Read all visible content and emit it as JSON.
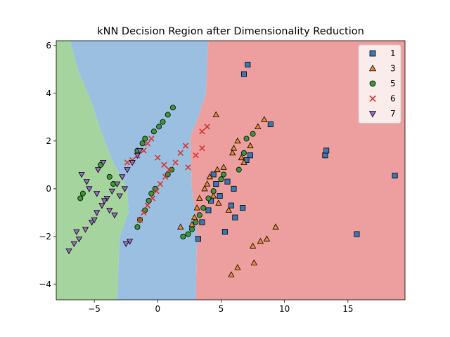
{
  "chart_data": {
    "type": "scatter",
    "title": "kNN Decision Region after Dimensionality Reduction",
    "xlabel": "",
    "ylabel": "",
    "xlim": [
      -8,
      19.5
    ],
    "ylim": [
      -4.65,
      6.2
    ],
    "xticks": [
      -5,
      0,
      5,
      10,
      15
    ],
    "xtick_labels": [
      "−5",
      "0",
      "5",
      "10",
      "15"
    ],
    "yticks": [
      -4,
      -2,
      0,
      2,
      4,
      6
    ],
    "ytick_labels": [
      "−4",
      "−2",
      "0",
      "2",
      "4",
      "6"
    ],
    "grid": false,
    "legend_position": "top-right",
    "regions": [
      {
        "class": "7",
        "color": "#a6d49e",
        "boundary": [
          [
            -8,
            6.2
          ],
          [
            -6.9,
            6.2
          ],
          [
            -6.3,
            5.0
          ],
          [
            -5.2,
            3.6
          ],
          [
            -4.4,
            2.3
          ],
          [
            -3.6,
            1.2
          ],
          [
            -2.9,
            0.5
          ],
          [
            -2.4,
            0.0
          ],
          [
            -2.3,
            -1.0
          ],
          [
            -3.0,
            -2.0
          ],
          [
            -3.2,
            -4.65
          ],
          [
            -8,
            -4.65
          ]
        ]
      },
      {
        "class": "1",
        "color": "#9abfe0",
        "boundary": [
          [
            -6.9,
            6.2
          ],
          [
            4.0,
            6.2
          ],
          [
            3.8,
            4.0
          ],
          [
            3.2,
            3.0
          ],
          [
            2.6,
            2.2
          ],
          [
            2.6,
            1.3
          ],
          [
            2.7,
            0.0
          ],
          [
            3.0,
            -1.2
          ],
          [
            3.1,
            -2.0
          ],
          [
            3.0,
            -4.65
          ],
          [
            -3.2,
            -4.65
          ],
          [
            -3.0,
            -2.0
          ],
          [
            -2.3,
            -1.0
          ],
          [
            -2.4,
            0.0
          ],
          [
            -2.9,
            0.5
          ],
          [
            -3.6,
            1.2
          ],
          [
            -4.4,
            2.3
          ],
          [
            -5.2,
            3.6
          ],
          [
            -6.3,
            5.0
          ]
        ]
      },
      {
        "class": "3",
        "color": "#ec9f9e",
        "boundary": [
          [
            4.0,
            6.2
          ],
          [
            19.5,
            6.2
          ],
          [
            19.5,
            -4.65
          ],
          [
            3.0,
            -4.65
          ],
          [
            3.1,
            -2.0
          ],
          [
            3.0,
            -1.2
          ],
          [
            2.7,
            0.0
          ],
          [
            2.6,
            1.3
          ],
          [
            2.6,
            2.2
          ],
          [
            3.2,
            3.0
          ],
          [
            3.8,
            4.0
          ]
        ]
      }
    ],
    "series": [
      {
        "name": "1",
        "marker": "square",
        "color": "#3a78b4",
        "points": [
          [
            7.1,
            5.2
          ],
          [
            6.8,
            4.8
          ],
          [
            8.9,
            2.7
          ],
          [
            7.3,
            1.4
          ],
          [
            7.0,
            1.2
          ],
          [
            13.2,
            1.4
          ],
          [
            13.3,
            1.6
          ],
          [
            18.7,
            0.55
          ],
          [
            15.7,
            -1.9
          ],
          [
            4.4,
            0.6
          ],
          [
            5.5,
            0.3
          ],
          [
            6.0,
            0.0
          ],
          [
            5.8,
            -0.7
          ],
          [
            6.7,
            -0.8
          ],
          [
            6.1,
            -1.2
          ],
          [
            5.3,
            -1.8
          ],
          [
            4.0,
            -0.9
          ],
          [
            3.5,
            -1.4
          ],
          [
            3.2,
            -2.1
          ],
          [
            4.9,
            -0.3
          ],
          [
            4.2,
            -0.5
          ],
          [
            4.6,
            0.2
          ]
        ]
      },
      {
        "name": "3",
        "marker": "triangle",
        "color": "#ef8a2e",
        "points": [
          [
            4.6,
            3.1
          ],
          [
            8.4,
            2.9
          ],
          [
            7.9,
            2.6
          ],
          [
            7.3,
            1.8
          ],
          [
            6.3,
            2.0
          ],
          [
            6.0,
            1.7
          ],
          [
            5.9,
            1.5
          ],
          [
            6.6,
            1.3
          ],
          [
            6.8,
            1.1
          ],
          [
            5.2,
            0.9
          ],
          [
            4.7,
            0.8
          ],
          [
            4.1,
            0.5
          ],
          [
            3.9,
            0.2
          ],
          [
            3.7,
            0.0
          ],
          [
            3.3,
            -0.4
          ],
          [
            3.1,
            -0.8
          ],
          [
            2.9,
            -1.2
          ],
          [
            2.7,
            -1.5
          ],
          [
            1.8,
            -1.6
          ],
          [
            9.3,
            -1.6
          ],
          [
            8.6,
            -2.1
          ],
          [
            8.1,
            -2.2
          ],
          [
            7.5,
            -2.4
          ],
          [
            6.3,
            -3.3
          ],
          [
            5.8,
            -3.6
          ],
          [
            7.6,
            -3.1
          ],
          [
            4.8,
            -0.6
          ],
          [
            4.4,
            -0.3
          ],
          [
            5.6,
            -0.9
          ]
        ]
      },
      {
        "name": "5",
        "marker": "circle",
        "color": "#3b9838",
        "points": [
          [
            1.2,
            3.4
          ],
          [
            0.8,
            3.1
          ],
          [
            0.4,
            2.8
          ],
          [
            0.1,
            2.6
          ],
          [
            -0.3,
            2.4
          ],
          [
            -1.0,
            2.1
          ],
          [
            -1.2,
            1.9
          ],
          [
            -1.6,
            1.6
          ],
          [
            -5.9,
            -0.2
          ],
          [
            -6.1,
            -0.4
          ],
          [
            -4.5,
            1.0
          ],
          [
            -3.8,
            0.5
          ],
          [
            -3.5,
            0.2
          ],
          [
            -0.2,
            0.0
          ],
          [
            -0.5,
            -0.2
          ],
          [
            -0.7,
            -0.5
          ],
          [
            -1.0,
            -0.9
          ],
          [
            -1.4,
            -1.3
          ],
          [
            -1.6,
            -1.6
          ],
          [
            1.1,
            0.8
          ],
          [
            0.8,
            0.6
          ],
          [
            7.5,
            2.3
          ],
          [
            7.0,
            2.1
          ],
          [
            6.8,
            1.5
          ],
          [
            5.2,
            0.6
          ],
          [
            5.0,
            0.4
          ],
          [
            4.4,
            -0.1
          ],
          [
            4.0,
            -0.4
          ],
          [
            3.6,
            -0.8
          ],
          [
            3.3,
            -1.1
          ],
          [
            3.0,
            -1.4
          ],
          [
            2.7,
            -1.7
          ],
          [
            2.4,
            -1.9
          ],
          [
            2.0,
            -2.0
          ],
          [
            6.4,
            0.8
          ]
        ]
      },
      {
        "name": "6",
        "marker": "x",
        "color": "#d9322c",
        "points": [
          [
            3.9,
            2.6
          ],
          [
            3.5,
            2.4
          ],
          [
            2.2,
            1.8
          ],
          [
            1.8,
            1.5
          ],
          [
            1.4,
            1.1
          ],
          [
            0.9,
            0.8
          ],
          [
            0.6,
            0.5
          ],
          [
            0.2,
            0.2
          ],
          [
            -0.1,
            -0.1
          ],
          [
            -0.4,
            -0.4
          ],
          [
            -0.8,
            -0.7
          ],
          [
            -1.1,
            -1.0
          ],
          [
            -1.4,
            -1.3
          ],
          [
            -0.5,
            2.1
          ],
          [
            -0.8,
            1.9
          ],
          [
            -1.1,
            1.6
          ],
          [
            -1.6,
            1.4
          ],
          [
            -2.0,
            1.2
          ],
          [
            -2.4,
            1.1
          ],
          [
            3.5,
            1.7
          ],
          [
            3.0,
            1.4
          ],
          [
            2.4,
            0.9
          ],
          [
            0.0,
            1.3
          ],
          [
            0.5,
            1.0
          ]
        ]
      },
      {
        "name": "7",
        "marker": "triangle-down",
        "color": "#9a6ec0",
        "points": [
          [
            -7.0,
            -2.6
          ],
          [
            -6.6,
            -2.3
          ],
          [
            -6.2,
            -2.1
          ],
          [
            -5.7,
            -1.7
          ],
          [
            -5.2,
            -1.4
          ],
          [
            -4.8,
            -1.0
          ],
          [
            -4.4,
            -0.7
          ],
          [
            -4.0,
            -0.4
          ],
          [
            -3.6,
            -0.1
          ],
          [
            -3.2,
            0.2
          ],
          [
            -2.8,
            0.5
          ],
          [
            -2.4,
            0.8
          ],
          [
            -2.0,
            1.1
          ],
          [
            -1.6,
            1.4
          ],
          [
            -1.4,
            1.6
          ],
          [
            -6.0,
            0.6
          ],
          [
            -5.6,
            0.3
          ],
          [
            -4.8,
            -0.2
          ],
          [
            -4.2,
            -0.5
          ],
          [
            -3.8,
            -0.9
          ],
          [
            -3.4,
            -1.1
          ],
          [
            -2.2,
            -2.2
          ],
          [
            -2.5,
            -2.3
          ],
          [
            -4.3,
            1.1
          ],
          [
            -4.7,
            0.8
          ],
          [
            -3.0,
            -0.3
          ],
          [
            -2.6,
            0.0
          ],
          [
            -5.4,
            0.0
          ],
          [
            -6.4,
            -1.8
          ],
          [
            -5.0,
            -1.3
          ]
        ]
      }
    ],
    "legend": [
      {
        "label": "1",
        "marker": "square",
        "color": "#3a78b4"
      },
      {
        "label": "3",
        "marker": "triangle",
        "color": "#ef8a2e"
      },
      {
        "label": "5",
        "marker": "circle",
        "color": "#3b9838"
      },
      {
        "label": "6",
        "marker": "x",
        "color": "#d9322c"
      },
      {
        "label": "7",
        "marker": "triangle-down",
        "color": "#9a6ec0"
      }
    ]
  }
}
